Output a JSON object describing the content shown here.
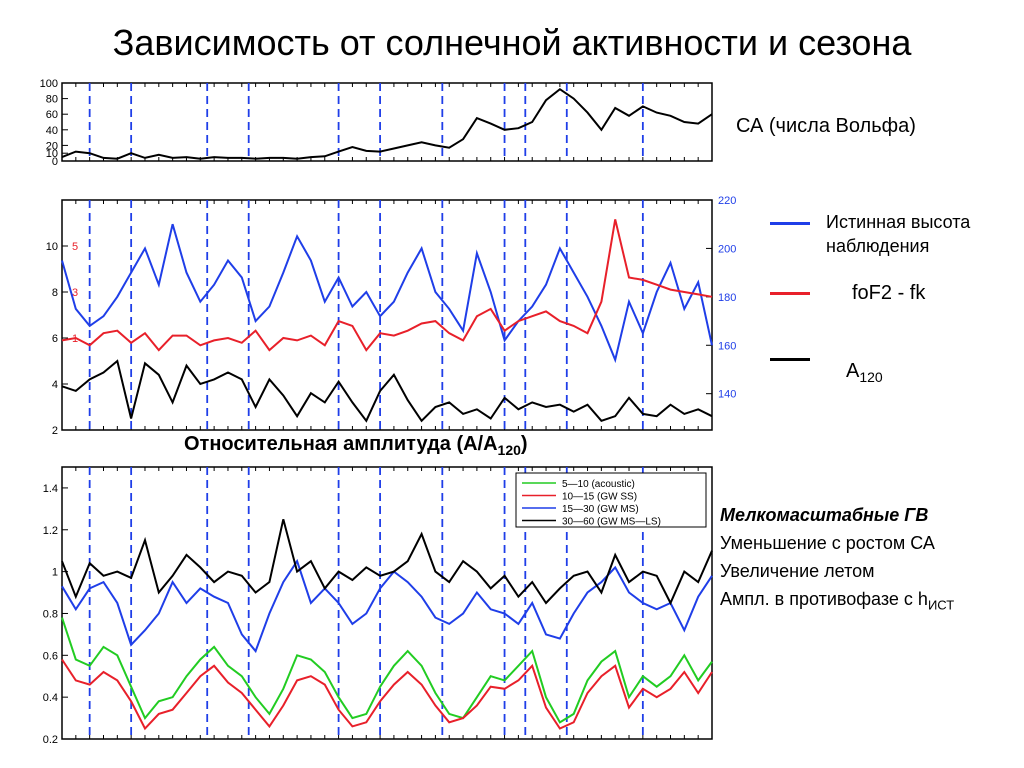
{
  "title": "Зависимость от солнечной активности и сезона",
  "captions": {
    "sa_label": "СА (числа Вольфа)",
    "legend_height": "Истинная высота наблюдения",
    "legend_fof2": "foF2 - fk",
    "legend_a": "A",
    "legend_a_sub": "120",
    "middle_caption": "Относительная амплитуда (A/A",
    "middle_caption_sub": "120",
    "middle_caption_end": ")",
    "notes_title": "Мелкомасштабные ГВ",
    "note1": "Уменьшение с ростом СА",
    "note2": "Увеличение летом",
    "note3": "Ампл. в противофазе с h",
    "note3_sub": "ИСТ"
  },
  "colors": {
    "blue": "#1f3ee8",
    "red": "#e8202a",
    "black": "#000000",
    "green": "#22cc22",
    "dashed": "#1f3ee8"
  },
  "dashed_x": [
    4,
    10,
    21,
    27,
    40,
    46,
    55,
    64,
    67,
    73,
    84
  ],
  "chart_data": [
    {
      "type": "line",
      "yticks": [
        0,
        10,
        20,
        40,
        60,
        80,
        100
      ],
      "ylim": [
        0,
        100
      ],
      "xlim": [
        0,
        94
      ],
      "series": [
        {
          "color": "black",
          "x": [
            0,
            2,
            4,
            6,
            8,
            10,
            12,
            14,
            16,
            18,
            20,
            22,
            24,
            26,
            28,
            30,
            32,
            34,
            36,
            38,
            40,
            42,
            44,
            46,
            48,
            50,
            52,
            54,
            56,
            58,
            60,
            62,
            64,
            66,
            68,
            70,
            72,
            74,
            76,
            78,
            80,
            82,
            84,
            86,
            88,
            90,
            92,
            94
          ],
          "y": [
            5,
            12,
            10,
            4,
            3,
            10,
            4,
            8,
            4,
            5,
            3,
            5,
            4,
            4,
            3,
            4,
            4,
            3,
            5,
            6,
            12,
            18,
            13,
            12,
            16,
            20,
            24,
            20,
            17,
            28,
            55,
            48,
            40,
            42,
            50,
            78,
            92,
            80,
            62,
            40,
            68,
            58,
            70,
            62,
            58,
            50,
            48,
            60
          ]
        }
      ]
    },
    {
      "type": "line",
      "yticks": [
        2,
        4,
        6,
        8,
        10
      ],
      "ylim": [
        2,
        12
      ],
      "y2ticks": [
        140,
        160,
        180,
        200,
        220
      ],
      "y2lim": [
        125,
        220
      ],
      "inner_labels_red": [
        "1",
        "3",
        "5"
      ],
      "xlim": [
        0,
        94
      ],
      "series": [
        {
          "color": "blue",
          "axis": "right",
          "x": [
            0,
            2,
            4,
            6,
            8,
            10,
            12,
            14,
            16,
            18,
            20,
            22,
            24,
            26,
            28,
            30,
            32,
            34,
            36,
            38,
            40,
            42,
            44,
            46,
            48,
            50,
            52,
            54,
            56,
            58,
            60,
            62,
            64,
            66,
            68,
            70,
            72,
            74,
            76,
            78,
            80,
            82,
            84,
            86,
            88,
            90,
            92,
            94
          ],
          "y": [
            195,
            175,
            168,
            172,
            180,
            190,
            200,
            185,
            210,
            190,
            178,
            185,
            195,
            188,
            170,
            176,
            190,
            205,
            195,
            178,
            188,
            176,
            182,
            172,
            178,
            190,
            200,
            182,
            175,
            166,
            198,
            182,
            162,
            170,
            176,
            185,
            200,
            190,
            180,
            168,
            154,
            178,
            165,
            182,
            194,
            175,
            186,
            160
          ]
        },
        {
          "color": "red",
          "axis": "right",
          "x": [
            0,
            2,
            4,
            6,
            8,
            10,
            12,
            14,
            16,
            18,
            20,
            22,
            24,
            26,
            28,
            30,
            32,
            34,
            36,
            38,
            40,
            42,
            44,
            46,
            48,
            50,
            52,
            54,
            56,
            58,
            60,
            62,
            64,
            66,
            68,
            70,
            72,
            74,
            76,
            78,
            80,
            82,
            84,
            86,
            88,
            90,
            92,
            94
          ],
          "y": [
            162,
            163,
            160,
            165,
            166,
            161,
            165,
            158,
            164,
            164,
            160,
            162,
            163,
            161,
            166,
            158,
            163,
            162,
            164,
            160,
            170,
            168,
            158,
            165,
            164,
            166,
            169,
            170,
            165,
            162,
            172,
            175,
            166,
            170,
            172,
            174,
            170,
            168,
            165,
            178,
            212,
            188,
            187,
            185,
            183,
            182,
            181,
            180
          ]
        },
        {
          "color": "black",
          "axis": "left",
          "x": [
            0,
            2,
            4,
            6,
            8,
            10,
            12,
            14,
            16,
            18,
            20,
            22,
            24,
            26,
            28,
            30,
            32,
            34,
            36,
            38,
            40,
            42,
            44,
            46,
            48,
            50,
            52,
            54,
            56,
            58,
            60,
            62,
            64,
            66,
            68,
            70,
            72,
            74,
            76,
            78,
            80,
            82,
            84,
            86,
            88,
            90,
            92,
            94
          ],
          "y": [
            3.9,
            3.7,
            4.2,
            4.5,
            5.0,
            2.5,
            4.9,
            4.4,
            3.2,
            4.8,
            4.0,
            4.2,
            4.5,
            4.2,
            3.0,
            4.2,
            3.5,
            2.6,
            3.6,
            3.2,
            4.1,
            3.2,
            2.4,
            3.7,
            4.4,
            3.3,
            2.4,
            3.0,
            3.2,
            2.7,
            2.9,
            2.5,
            3.4,
            2.9,
            3.2,
            3.0,
            3.1,
            2.8,
            3.1,
            2.4,
            2.6,
            3.4,
            2.7,
            2.6,
            3.1,
            2.7,
            2.9,
            2.6
          ]
        }
      ]
    },
    {
      "type": "line",
      "yticks": [
        0.2,
        0.4,
        0.6,
        0.8,
        1,
        1.2,
        1.4
      ],
      "ylim": [
        0.2,
        1.5
      ],
      "xlim": [
        0,
        94
      ],
      "legend": [
        "5—10 (acoustic)",
        "10—15 (GW SS)",
        "15—30 (GW MS)",
        "30—60 (GW MS—LS)"
      ],
      "series": [
        {
          "color": "green",
          "x": [
            0,
            2,
            4,
            6,
            8,
            10,
            12,
            14,
            16,
            18,
            20,
            22,
            24,
            26,
            28,
            30,
            32,
            34,
            36,
            38,
            40,
            42,
            44,
            46,
            48,
            50,
            52,
            54,
            56,
            58,
            60,
            62,
            64,
            66,
            68,
            70,
            72,
            74,
            76,
            78,
            80,
            82,
            84,
            86,
            88,
            90,
            92,
            94
          ],
          "y": [
            0.78,
            0.58,
            0.55,
            0.64,
            0.6,
            0.45,
            0.3,
            0.38,
            0.4,
            0.5,
            0.58,
            0.64,
            0.55,
            0.5,
            0.4,
            0.32,
            0.44,
            0.6,
            0.58,
            0.52,
            0.4,
            0.3,
            0.32,
            0.45,
            0.55,
            0.62,
            0.55,
            0.42,
            0.32,
            0.3,
            0.4,
            0.5,
            0.48,
            0.55,
            0.62,
            0.4,
            0.28,
            0.32,
            0.48,
            0.57,
            0.62,
            0.4,
            0.5,
            0.45,
            0.5,
            0.6,
            0.48,
            0.57
          ]
        },
        {
          "color": "red",
          "x": [
            0,
            2,
            4,
            6,
            8,
            10,
            12,
            14,
            16,
            18,
            20,
            22,
            24,
            26,
            28,
            30,
            32,
            34,
            36,
            38,
            40,
            42,
            44,
            46,
            48,
            50,
            52,
            54,
            56,
            58,
            60,
            62,
            64,
            66,
            68,
            70,
            72,
            74,
            76,
            78,
            80,
            82,
            84,
            86,
            88,
            90,
            92,
            94
          ],
          "y": [
            0.58,
            0.48,
            0.46,
            0.52,
            0.48,
            0.38,
            0.25,
            0.32,
            0.34,
            0.42,
            0.5,
            0.55,
            0.47,
            0.42,
            0.34,
            0.26,
            0.36,
            0.48,
            0.5,
            0.46,
            0.34,
            0.26,
            0.28,
            0.38,
            0.46,
            0.52,
            0.46,
            0.36,
            0.28,
            0.3,
            0.36,
            0.45,
            0.44,
            0.48,
            0.55,
            0.35,
            0.25,
            0.28,
            0.42,
            0.5,
            0.55,
            0.35,
            0.44,
            0.4,
            0.44,
            0.52,
            0.42,
            0.52
          ]
        },
        {
          "color": "blue",
          "x": [
            0,
            2,
            4,
            6,
            8,
            10,
            12,
            14,
            16,
            18,
            20,
            22,
            24,
            26,
            28,
            30,
            32,
            34,
            36,
            38,
            40,
            42,
            44,
            46,
            48,
            50,
            52,
            54,
            56,
            58,
            60,
            62,
            64,
            66,
            68,
            70,
            72,
            74,
            76,
            78,
            80,
            82,
            84,
            86,
            88,
            90,
            92,
            94
          ],
          "y": [
            0.93,
            0.82,
            0.92,
            0.95,
            0.85,
            0.65,
            0.72,
            0.8,
            0.95,
            0.85,
            0.92,
            0.88,
            0.85,
            0.7,
            0.62,
            0.8,
            0.95,
            1.05,
            0.85,
            0.92,
            0.85,
            0.75,
            0.8,
            0.92,
            1.0,
            0.95,
            0.88,
            0.78,
            0.75,
            0.8,
            0.9,
            0.82,
            0.8,
            0.75,
            0.85,
            0.7,
            0.68,
            0.8,
            0.9,
            0.95,
            1.02,
            0.9,
            0.85,
            0.82,
            0.85,
            0.72,
            0.88,
            0.98
          ]
        },
        {
          "color": "black",
          "x": [
            0,
            2,
            4,
            6,
            8,
            10,
            12,
            14,
            16,
            18,
            20,
            22,
            24,
            26,
            28,
            30,
            32,
            34,
            36,
            38,
            40,
            42,
            44,
            46,
            48,
            50,
            52,
            54,
            56,
            58,
            60,
            62,
            64,
            66,
            68,
            70,
            72,
            74,
            76,
            78,
            80,
            82,
            84,
            86,
            88,
            90,
            92,
            94
          ],
          "y": [
            1.05,
            0.88,
            1.04,
            0.98,
            1.0,
            0.97,
            1.15,
            0.9,
            0.98,
            1.08,
            1.02,
            0.95,
            1.0,
            0.98,
            0.9,
            0.95,
            1.25,
            1.0,
            1.05,
            0.92,
            1.0,
            0.96,
            1.02,
            0.98,
            1.0,
            1.05,
            1.18,
            1.0,
            0.95,
            1.05,
            1.0,
            0.92,
            0.98,
            0.88,
            0.95,
            0.85,
            0.92,
            0.98,
            1.0,
            0.9,
            1.08,
            0.95,
            1.0,
            0.98,
            0.85,
            1.0,
            0.95,
            1.1
          ]
        }
      ]
    }
  ]
}
